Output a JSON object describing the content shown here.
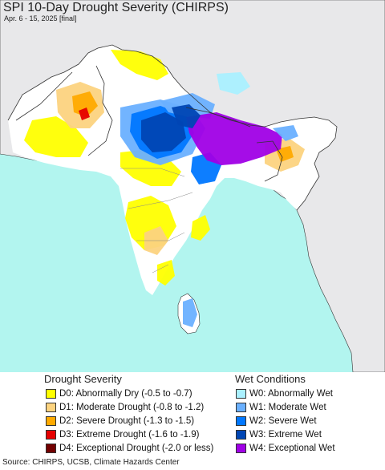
{
  "title": "SPI 10-Day Drought Severity (CHIRPS)",
  "subtitle": "Apr. 6 - 15, 2025 [final]",
  "legend": {
    "drought_heading": "Drought Severity",
    "wet_heading": "Wet Conditions",
    "drought": [
      {
        "code": "D0",
        "label": "D0: Abnormally Dry (-0.5 to -0.7)",
        "color": "#ffff00"
      },
      {
        "code": "D1",
        "label": "D1: Moderate Drought (-0.8 to -1.2)",
        "color": "#fcd37f"
      },
      {
        "code": "D2",
        "label": "D2: Severe Drought (-1.3 to -1.5)",
        "color": "#ffaa00"
      },
      {
        "code": "D3",
        "label": "D3: Extreme Drought (-1.6 to -1.9)",
        "color": "#e60000"
      },
      {
        "code": "D4",
        "label": "D4: Exceptional Drought (-2.0 or less)",
        "color": "#730000"
      }
    ],
    "wet": [
      {
        "code": "W0",
        "label": "W0: Abnormally Wet",
        "color": "#aaf0ff"
      },
      {
        "code": "W1",
        "label": "W1: Moderate Wet",
        "color": "#6ab0ff"
      },
      {
        "code": "W2",
        "label": "W2: Severe Wet",
        "color": "#0077ff"
      },
      {
        "code": "W3",
        "label": "W3: Extreme Wet",
        "color": "#0046b4"
      },
      {
        "code": "W4",
        "label": "W4: Exceptional Wet",
        "color": "#a000e6"
      }
    ]
  },
  "source": "Source: CHIRPS, UCSB, Climate Hazards Center",
  "map_colors": {
    "ocean": "#b2f5ef",
    "land_outside": "#e8e8ea",
    "land_inside": "#ffffff",
    "border": "#333333"
  }
}
